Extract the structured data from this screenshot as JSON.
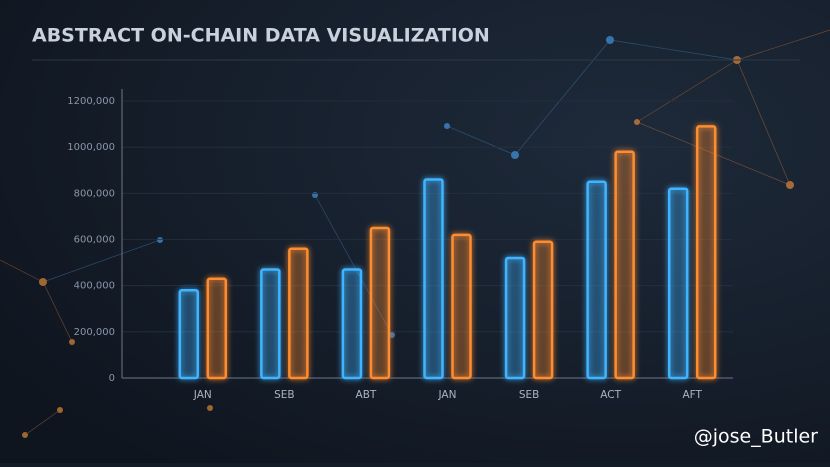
{
  "chart_data": {
    "type": "bar",
    "title": "ABSTRACT ON-CHAIN DATA VISUALIZATION",
    "categories": [
      "JAN",
      "SEB",
      "ABT",
      "JAN",
      "SEB",
      "ACT",
      "AFT"
    ],
    "series": [
      {
        "color": "#3fb4ff",
        "values": [
          380000,
          470000,
          470000,
          860000,
          520000,
          850000,
          820000
        ]
      },
      {
        "color": "#ff8c2e",
        "values": [
          430000,
          560000,
          650000,
          620000,
          590000,
          980000,
          1090000
        ]
      }
    ],
    "ylim": [
      0,
      1200000
    ],
    "yticks": [
      0,
      {
        "value": 200000,
        "label": "200,000"
      },
      {
        "value": 400000,
        "label": "400,000"
      },
      {
        "value": 600000,
        "label": "600,000"
      },
      {
        "value": 800000,
        "label": "800,000"
      },
      {
        "value": 1000000,
        "label": "1000,000"
      },
      {
        "value": 1200000,
        "label": "1200,000"
      }
    ],
    "grid": true
  },
  "watermark": "@jose_Butler"
}
